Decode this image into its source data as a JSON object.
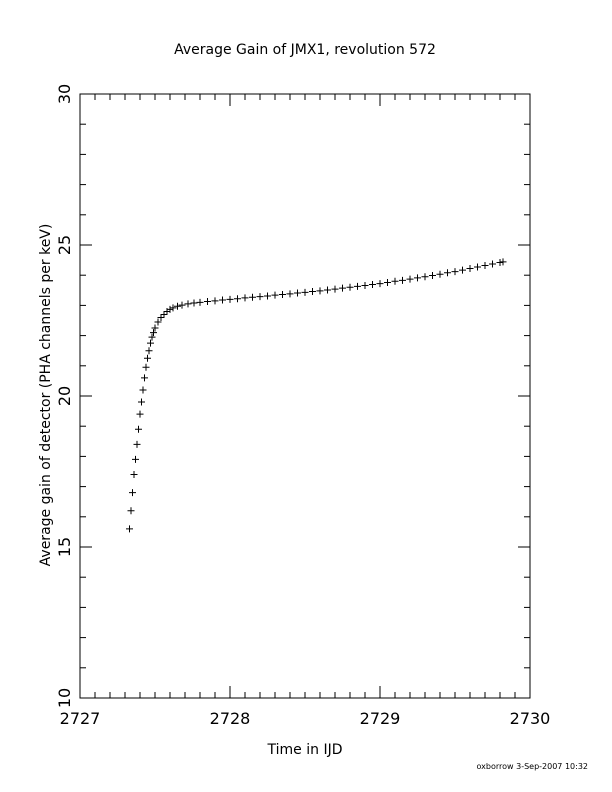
{
  "chart_data": {
    "type": "scatter",
    "title": "Average Gain of JMX1, revolution 572",
    "xlabel": "Time in IJD",
    "ylabel": "Average gain of detector (PHA channels per keV)",
    "xlim": [
      2727,
      2730
    ],
    "ylim": [
      10,
      30
    ],
    "x_ticks": [
      "2727",
      "2728",
      "2729",
      "2730"
    ],
    "y_ticks": [
      "10",
      "15",
      "20",
      "25",
      "30"
    ],
    "marker": "plus",
    "grid": false,
    "series": [
      {
        "points": [
          [
            2727.33,
            15.6
          ],
          [
            2727.34,
            16.2
          ],
          [
            2727.35,
            16.8
          ],
          [
            2727.36,
            17.4
          ],
          [
            2727.37,
            17.9
          ],
          [
            2727.38,
            18.4
          ],
          [
            2727.39,
            18.9
          ],
          [
            2727.4,
            19.4
          ],
          [
            2727.41,
            19.8
          ],
          [
            2727.42,
            20.2
          ],
          [
            2727.43,
            20.6
          ],
          [
            2727.44,
            20.95
          ],
          [
            2727.45,
            21.25
          ],
          [
            2727.46,
            21.5
          ],
          [
            2727.47,
            21.75
          ],
          [
            2727.48,
            21.95
          ],
          [
            2727.49,
            22.1
          ],
          [
            2727.5,
            22.25
          ],
          [
            2727.52,
            22.45
          ],
          [
            2727.54,
            22.6
          ],
          [
            2727.56,
            22.7
          ],
          [
            2727.58,
            22.8
          ],
          [
            2727.6,
            22.87
          ],
          [
            2727.62,
            22.92
          ],
          [
            2727.65,
            22.97
          ],
          [
            2727.68,
            23.01
          ],
          [
            2727.72,
            23.05
          ],
          [
            2727.76,
            23.08
          ],
          [
            2727.8,
            23.1
          ],
          [
            2727.85,
            23.13
          ],
          [
            2727.9,
            23.15
          ],
          [
            2727.95,
            23.18
          ],
          [
            2728.0,
            23.2
          ],
          [
            2728.05,
            23.22
          ],
          [
            2728.1,
            23.25
          ],
          [
            2728.15,
            23.27
          ],
          [
            2728.2,
            23.29
          ],
          [
            2728.25,
            23.31
          ],
          [
            2728.3,
            23.34
          ],
          [
            2728.35,
            23.36
          ],
          [
            2728.4,
            23.38
          ],
          [
            2728.45,
            23.41
          ],
          [
            2728.5,
            23.43
          ],
          [
            2728.55,
            23.46
          ],
          [
            2728.6,
            23.48
          ],
          [
            2728.65,
            23.51
          ],
          [
            2728.7,
            23.54
          ],
          [
            2728.75,
            23.57
          ],
          [
            2728.8,
            23.6
          ],
          [
            2728.85,
            23.63
          ],
          [
            2728.9,
            23.66
          ],
          [
            2728.95,
            23.69
          ],
          [
            2729.0,
            23.72
          ],
          [
            2729.05,
            23.76
          ],
          [
            2729.1,
            23.8
          ],
          [
            2729.15,
            23.83
          ],
          [
            2729.2,
            23.87
          ],
          [
            2729.25,
            23.91
          ],
          [
            2729.3,
            23.95
          ],
          [
            2729.35,
            23.99
          ],
          [
            2729.4,
            24.03
          ],
          [
            2729.45,
            24.08
          ],
          [
            2729.5,
            24.12
          ],
          [
            2729.55,
            24.17
          ],
          [
            2729.6,
            24.22
          ],
          [
            2729.65,
            24.27
          ],
          [
            2729.7,
            24.32
          ],
          [
            2729.75,
            24.37
          ],
          [
            2729.8,
            24.42
          ],
          [
            2729.82,
            24.44
          ]
        ]
      }
    ]
  },
  "footer": {
    "stamp": "oxborrow  3-Sep-2007 10:32"
  }
}
